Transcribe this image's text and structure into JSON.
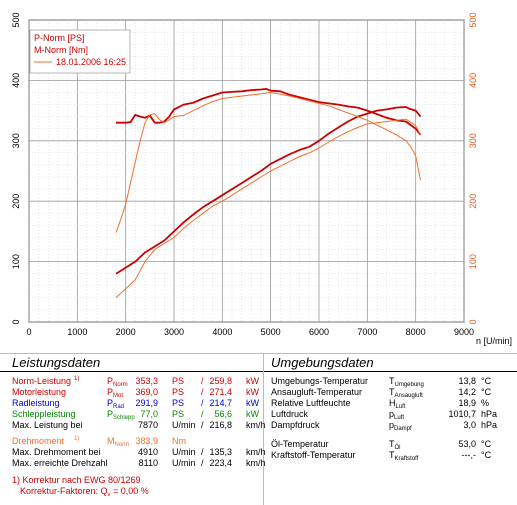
{
  "chart_data": {
    "type": "line",
    "xlabel": "n [U/min]",
    "xlim": [
      0,
      9000
    ],
    "ylim_left": [
      0,
      500
    ],
    "ylim_right": [
      0,
      500
    ],
    "x_ticks": [
      "0",
      "1000",
      "2000",
      "3000",
      "4000",
      "5000",
      "6000",
      "7000",
      "8000",
      "9000"
    ],
    "y_ticks": [
      "0",
      "100",
      "200",
      "300",
      "400",
      "500"
    ],
    "legend_position": "top-left",
    "legend": [
      "P-Norm [PS]",
      "M-Norm [Nm]",
      "18.01.2006 16:25"
    ],
    "series": [
      {
        "name": "P-Norm [PS]",
        "color": "#cc0000",
        "x": [
          1800,
          2000,
          2200,
          2400,
          2600,
          2800,
          3000,
          3200,
          3400,
          3600,
          3800,
          4000,
          4200,
          4400,
          4600,
          4800,
          5000,
          5200,
          5400,
          5600,
          5800,
          6000,
          6200,
          6400,
          6600,
          6800,
          7000,
          7200,
          7400,
          7600,
          7800,
          7870,
          8000,
          8100
        ],
        "y": [
          80,
          90,
          100,
          115,
          125,
          135,
          150,
          165,
          178,
          190,
          200,
          210,
          220,
          230,
          240,
          250,
          262,
          270,
          278,
          285,
          290,
          300,
          312,
          322,
          332,
          340,
          345,
          350,
          352,
          355,
          356,
          353,
          350,
          340
        ]
      },
      {
        "name": "M-Norm [Nm]",
        "color": "#cc0000",
        "x": [
          1800,
          2000,
          2100,
          2200,
          2300,
          2400,
          2500,
          2600,
          2700,
          2800,
          2900,
          3000,
          3200,
          3400,
          3600,
          3800,
          4000,
          4200,
          4400,
          4600,
          4800,
          4910,
          5000,
          5200,
          5400,
          5600,
          5800,
          6000,
          6200,
          6400,
          6600,
          6800,
          7000,
          7200,
          7400,
          7600,
          7800,
          7900,
          8000,
          8100
        ],
        "y": [
          330,
          330,
          331,
          343,
          340,
          338,
          342,
          330,
          330,
          332,
          340,
          352,
          360,
          363,
          370,
          375,
          380,
          381,
          382,
          384,
          385,
          386,
          383,
          382,
          376,
          372,
          368,
          364,
          362,
          360,
          357,
          355,
          350,
          344,
          338,
          334,
          332,
          326,
          320,
          310
        ]
      },
      {
        "name": "18.01.2006 16:25 P-Norm",
        "color": "#f07030",
        "x": [
          1800,
          2000,
          2200,
          2400,
          2600,
          2800,
          3000,
          3200,
          3400,
          3600,
          3800,
          4000,
          4200,
          4400,
          4600,
          4800,
          5000,
          5200,
          5400,
          5600,
          5800,
          6000,
          6200,
          6400,
          6600,
          6800,
          7000,
          7200,
          7400,
          7600,
          7800,
          8000,
          8100
        ],
        "y": [
          40,
          55,
          70,
          100,
          120,
          130,
          140,
          155,
          168,
          180,
          192,
          200,
          210,
          220,
          230,
          240,
          250,
          258,
          266,
          274,
          280,
          288,
          298,
          307,
          315,
          322,
          328,
          330,
          332,
          334,
          336,
          325,
          310
        ]
      },
      {
        "name": "18.01.2006 16:25 M-Norm",
        "color": "#f07030",
        "x": [
          1800,
          1900,
          2000,
          2100,
          2200,
          2300,
          2400,
          2500,
          2600,
          2700,
          2800,
          2900,
          3000,
          3200,
          3400,
          3600,
          3800,
          4000,
          4200,
          4400,
          4600,
          4800,
          5000,
          5200,
          5400,
          5600,
          5800,
          6000,
          6200,
          6400,
          6600,
          6800,
          7000,
          7200,
          7400,
          7600,
          7800,
          7900,
          8000,
          8100
        ],
        "y": [
          148,
          170,
          195,
          230,
          265,
          300,
          330,
          343,
          345,
          335,
          330,
          335,
          340,
          342,
          350,
          358,
          365,
          370,
          372,
          374,
          376,
          378,
          380,
          377,
          374,
          370,
          366,
          362,
          358,
          352,
          346,
          340,
          334,
          326,
          318,
          310,
          300,
          290,
          275,
          235
        ]
      }
    ],
    "grid": true
  },
  "left_panel": {
    "title": "Leistungsdaten",
    "rows": [
      {
        "label": "Norm-Leistung",
        "mark": "1)",
        "sym": "P",
        "sub": "Norm",
        "v1": "353,3",
        "u1": "PS",
        "sep": "/",
        "v2": "259,8",
        "u2": "kW",
        "color": "#cc0000"
      },
      {
        "label": "Motorleistung",
        "mark": "",
        "sym": "P",
        "sub": "Mot",
        "v1": "369,0",
        "u1": "PS",
        "sep": "/",
        "v2": "271,4",
        "u2": "kW",
        "color": "#cc0000"
      },
      {
        "label": "Radleistung",
        "mark": "",
        "sym": "P",
        "sub": "Rad",
        "v1": "291,9",
        "u1": "PS",
        "sep": "/",
        "v2": "214,7",
        "u2": "kW",
        "color": "#0000cc"
      },
      {
        "label": "Schleppleistung",
        "mark": "",
        "sym": "P",
        "sub": "Schlepp",
        "v1": "77,0",
        "u1": "PS",
        "sep": "/",
        "v2": "56,6",
        "u2": "kW",
        "color": "#008800"
      },
      {
        "label": "Max. Leistung bei",
        "mark": "",
        "sym": "",
        "sub": "",
        "v1": "7870",
        "u1": "U/min",
        "sep": "/",
        "v2": "216,8",
        "u2": "km/h",
        "color": "#000000"
      },
      {
        "label": "Drehmoment",
        "mark": "1)",
        "sym": "M",
        "sub": "Norm",
        "v1": "383,9",
        "u1": "Nm",
        "sep": "",
        "v2": "",
        "u2": "",
        "color": "#f07030"
      },
      {
        "label": "Max. Drehmoment bei",
        "mark": "",
        "sym": "",
        "sub": "",
        "v1": "4910",
        "u1": "U/min",
        "sep": "/",
        "v2": "135,3",
        "u2": "km/h",
        "color": "#000000"
      },
      {
        "label": "Max. erreichte Drehzahl",
        "mark": "",
        "sym": "",
        "sub": "",
        "v1": "8110",
        "u1": "U/min",
        "sep": "/",
        "v2": "223,4",
        "u2": "km/h",
        "color": "#000000"
      }
    ],
    "footnote1": "1) Korrektur nach EWG 80/1269",
    "footnote2_pre": "Korrektur-Faktoren: Q",
    "footnote2_sub": "v",
    "footnote2_post": " =  0,00 %"
  },
  "right_panel": {
    "title": "Umgebungsdaten",
    "rows": [
      {
        "label": "Umgebungs-Temperatur",
        "sym": "T",
        "sub": "Umgebung",
        "val": "13,8",
        "unit": "°C"
      },
      {
        "label": "Ansaugluft-Temperatur",
        "sym": "T",
        "sub": "Ansaugluft",
        "val": "14,2",
        "unit": "°C"
      },
      {
        "label": "Relative Luftfeuchte",
        "sym": "H",
        "sub": "Luft",
        "val": "18,9",
        "unit": "%"
      },
      {
        "label": "Luftdruck",
        "sym": "p",
        "sub": "Luft",
        "val": "1010,7",
        "unit": "hPa"
      },
      {
        "label": "Dampfdruck",
        "sym": "p",
        "sub": "Dampf",
        "val": "3,0",
        "unit": "hPa"
      },
      {
        "label": "Öl-Temperatur",
        "sym": "T",
        "sub": "Öl",
        "val": "53,0",
        "unit": "°C"
      },
      {
        "label": "Kraftstoff-Temperatur",
        "sym": "T",
        "sub": "Kraftstoff",
        "val": "---,-",
        "unit": "°C"
      }
    ]
  }
}
